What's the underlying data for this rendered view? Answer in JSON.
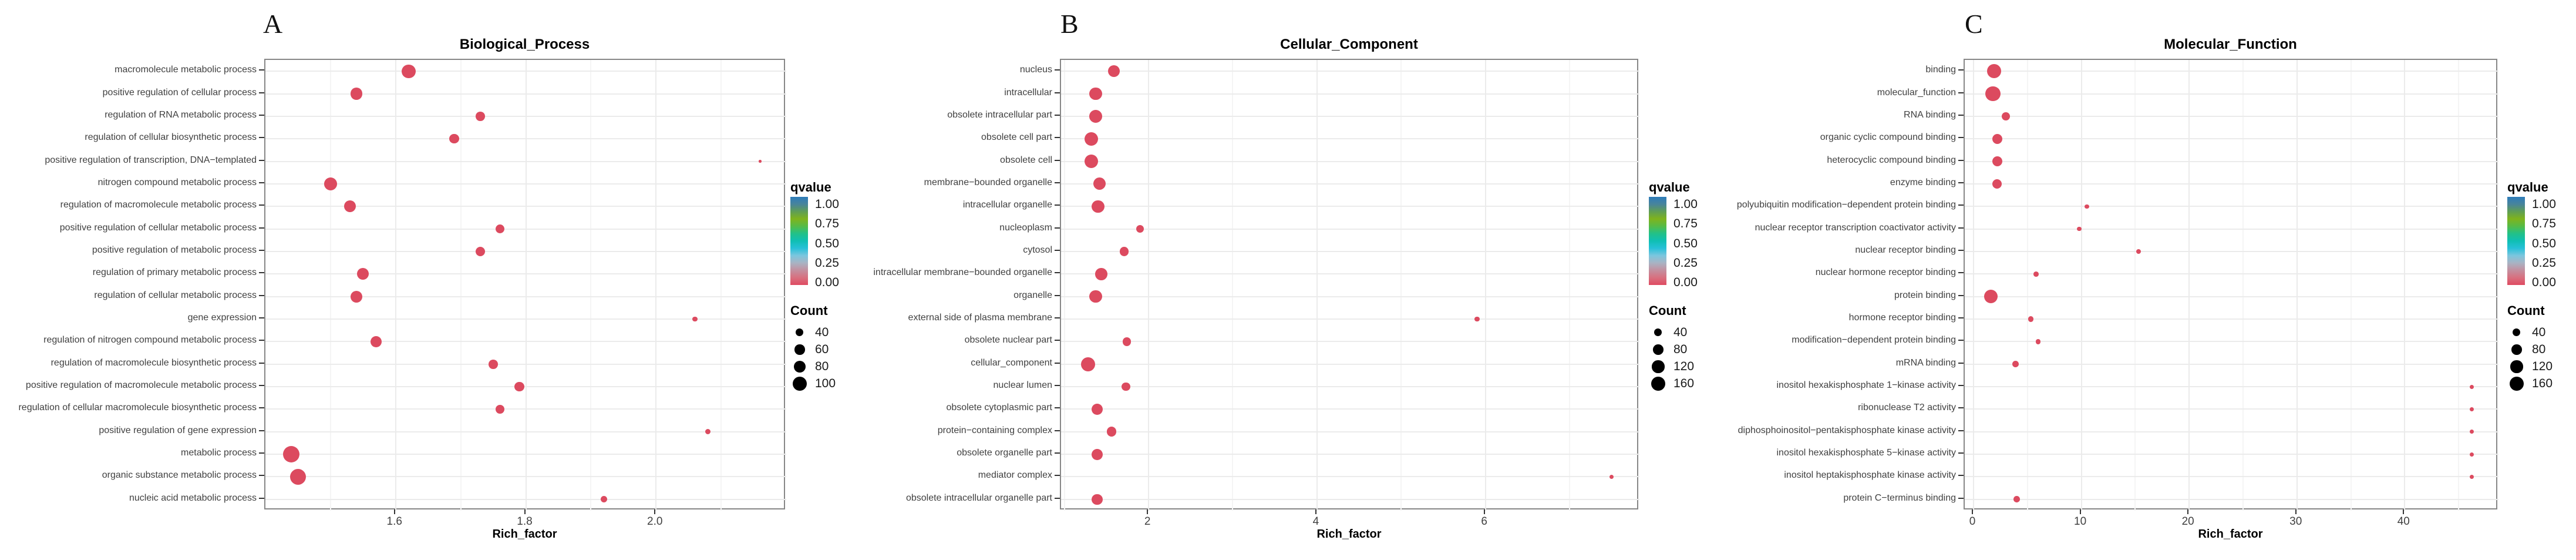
{
  "figure": {
    "description": "GO enrichment dot plots, three panels",
    "background": "#ffffff"
  },
  "colors": {
    "dot": "#DC4A5F",
    "panel_border": "#878787",
    "grid_major": "#EBEBEB",
    "grid_minor": "#F5F5F5",
    "axis_text": "#404040",
    "count_legend_dot": "#000000",
    "colorbar_top_to_bottom": [
      "#2E7CBA",
      "#48849B",
      "#5F9E55",
      "#7FB31D",
      "#55BB47",
      "#22C188",
      "#0FBFB4",
      "#27C0D8",
      "#7CC6DE",
      "#A9B3C3",
      "#C38F9F",
      "#D8707F",
      "#DF4A61"
    ]
  },
  "chart_data": [
    {
      "type": "scatter",
      "panel_letter": "A",
      "title": "Biological_Process",
      "xlabel": "Rich_factor",
      "xlim": [
        1.4,
        2.2
      ],
      "x_ticks": [
        1.6,
        1.8,
        2.0
      ],
      "x_tick_labels": [
        "1.6",
        "1.8",
        "2.0"
      ],
      "x_minor_ticks": [
        1.5,
        1.7,
        1.9,
        2.1
      ],
      "grid": true,
      "legend_position": "right",
      "legend": {
        "qvalue_title": "qvalue",
        "qvalue_tick_labels": [
          "1.00",
          "0.75",
          "0.50",
          "0.25",
          "0.00"
        ],
        "count_title": "Count",
        "count_breaks": [
          40,
          60,
          80,
          100
        ]
      },
      "points": [
        {
          "term": "macromolecule metabolic process",
          "rich_factor": 1.62,
          "count": 95,
          "qvalue": 0
        },
        {
          "term": "positive regulation of cellular process",
          "rich_factor": 1.54,
          "count": 78,
          "qvalue": 0
        },
        {
          "term": "regulation of RNA metabolic process",
          "rich_factor": 1.73,
          "count": 52,
          "qvalue": 0
        },
        {
          "term": "regulation of cellular biosynthetic process",
          "rich_factor": 1.69,
          "count": 55,
          "qvalue": 0
        },
        {
          "term": "positive regulation of transcription, DNA−templated",
          "rich_factor": 2.16,
          "count": 12,
          "qvalue": 0
        },
        {
          "term": "nitrogen compound metabolic process",
          "rich_factor": 1.5,
          "count": 86,
          "qvalue": 0
        },
        {
          "term": "regulation of macromolecule metabolic process",
          "rich_factor": 1.53,
          "count": 76,
          "qvalue": 0
        },
        {
          "term": "positive regulation of cellular metabolic process",
          "rich_factor": 1.76,
          "count": 50,
          "qvalue": 0
        },
        {
          "term": "positive regulation of metabolic process",
          "rich_factor": 1.73,
          "count": 54,
          "qvalue": 0
        },
        {
          "term": "regulation of primary metabolic process",
          "rich_factor": 1.55,
          "count": 76,
          "qvalue": 0
        },
        {
          "term": "regulation of cellular metabolic process",
          "rich_factor": 1.54,
          "count": 76,
          "qvalue": 0
        },
        {
          "term": "gene expression",
          "rich_factor": 2.06,
          "count": 24,
          "qvalue": 0
        },
        {
          "term": "regulation of nitrogen compound metabolic process",
          "rich_factor": 1.57,
          "count": 72,
          "qvalue": 0
        },
        {
          "term": "regulation of macromolecule biosynthetic process",
          "rich_factor": 1.75,
          "count": 52,
          "qvalue": 0
        },
        {
          "term": "positive regulation of macromolecule metabolic process",
          "rich_factor": 1.79,
          "count": 56,
          "qvalue": 0
        },
        {
          "term": "regulation of cellular macromolecule biosynthetic process",
          "rich_factor": 1.76,
          "count": 48,
          "qvalue": 0
        },
        {
          "term": "positive regulation of gene expression",
          "rich_factor": 2.08,
          "count": 25,
          "qvalue": 0
        },
        {
          "term": "metabolic process",
          "rich_factor": 1.44,
          "count": 130,
          "qvalue": 0
        },
        {
          "term": "organic substance metabolic process",
          "rich_factor": 1.45,
          "count": 122,
          "qvalue": 0
        },
        {
          "term": "nucleic acid metabolic process",
          "rich_factor": 1.92,
          "count": 32,
          "qvalue": 0
        }
      ]
    },
    {
      "type": "scatter",
      "panel_letter": "B",
      "title": "Cellular_Component",
      "xlabel": "Rich_factor",
      "xlim": [
        0.96,
        7.83
      ],
      "x_ticks": [
        2,
        4,
        6
      ],
      "x_tick_labels": [
        "2",
        "4",
        "6"
      ],
      "x_minor_ticks": [
        1,
        3,
        5,
        7
      ],
      "grid": true,
      "legend_position": "right",
      "legend": {
        "qvalue_title": "qvalue",
        "qvalue_tick_labels": [
          "1.00",
          "0.75",
          "0.50",
          "0.25",
          "0.00"
        ],
        "count_title": "Count",
        "count_breaks": [
          40,
          80,
          120,
          160
        ]
      },
      "points": [
        {
          "term": "nucleus",
          "rich_factor": 1.59,
          "count": 110,
          "qvalue": 0
        },
        {
          "term": "intracellular",
          "rich_factor": 1.37,
          "count": 130,
          "qvalue": 0
        },
        {
          "term": "obsolete intracellular part",
          "rich_factor": 1.37,
          "count": 130,
          "qvalue": 0
        },
        {
          "term": "obsolete cell part",
          "rich_factor": 1.32,
          "count": 150,
          "qvalue": 0
        },
        {
          "term": "obsolete cell",
          "rich_factor": 1.32,
          "count": 150,
          "qvalue": 0
        },
        {
          "term": "membrane−bounded organelle",
          "rich_factor": 1.42,
          "count": 120,
          "qvalue": 0
        },
        {
          "term": "intracellular organelle",
          "rich_factor": 1.4,
          "count": 125,
          "qvalue": 0
        },
        {
          "term": "nucleoplasm",
          "rich_factor": 1.9,
          "count": 40,
          "qvalue": 0
        },
        {
          "term": "cytosol",
          "rich_factor": 1.71,
          "count": 60,
          "qvalue": 0
        },
        {
          "term": "intracellular membrane−bounded organelle",
          "rich_factor": 1.44,
          "count": 115,
          "qvalue": 0
        },
        {
          "term": "organelle",
          "rich_factor": 1.37,
          "count": 125,
          "qvalue": 0
        },
        {
          "term": "external side of plasma membrane",
          "rich_factor": 5.9,
          "count": 15,
          "qvalue": 0
        },
        {
          "term": "obsolete nuclear part",
          "rich_factor": 1.74,
          "count": 50,
          "qvalue": 0
        },
        {
          "term": "cellular_component",
          "rich_factor": 1.28,
          "count": 165,
          "qvalue": 0
        },
        {
          "term": "nuclear lumen",
          "rich_factor": 1.73,
          "count": 50,
          "qvalue": 0
        },
        {
          "term": "obsolete cytoplasmic part",
          "rich_factor": 1.39,
          "count": 95,
          "qvalue": 0
        },
        {
          "term": "protein−containing complex",
          "rich_factor": 1.56,
          "count": 70,
          "qvalue": 0
        },
        {
          "term": "obsolete organelle part",
          "rich_factor": 1.39,
          "count": 95,
          "qvalue": 0
        },
        {
          "term": "mediator complex",
          "rich_factor": 7.5,
          "count": 10,
          "qvalue": 0
        },
        {
          "term": "obsolete intracellular organelle part",
          "rich_factor": 1.39,
          "count": 90,
          "qvalue": 0
        }
      ]
    },
    {
      "type": "scatter",
      "panel_letter": "C",
      "title": "Molecular_Function",
      "xlabel": "Rich_factor",
      "xlim": [
        -0.82,
        48.7
      ],
      "x_ticks": [
        0,
        10,
        20,
        30,
        40
      ],
      "x_tick_labels": [
        "0",
        "10",
        "20",
        "30",
        "40"
      ],
      "x_minor_ticks": [
        5,
        15,
        25,
        35,
        45
      ],
      "grid": true,
      "legend_position": "right",
      "legend": {
        "qvalue_title": "qvalue",
        "qvalue_tick_labels": [
          "1.00",
          "0.75",
          "0.50",
          "0.25",
          "0.00"
        ],
        "count_title": "Count",
        "count_breaks": [
          40,
          80,
          120,
          160
        ]
      },
      "points": [
        {
          "term": "binding",
          "rich_factor": 1.9,
          "count": 165,
          "qvalue": 0
        },
        {
          "term": "molecular_function",
          "rich_factor": 1.8,
          "count": 180,
          "qvalue": 0
        },
        {
          "term": "RNA binding",
          "rich_factor": 3.0,
          "count": 45,
          "qvalue": 0
        },
        {
          "term": "organic cyclic compound binding",
          "rich_factor": 2.2,
          "count": 75,
          "qvalue": 0
        },
        {
          "term": "heterocyclic compound binding",
          "rich_factor": 2.2,
          "count": 75,
          "qvalue": 0
        },
        {
          "term": "enzyme binding",
          "rich_factor": 2.2,
          "count": 65,
          "qvalue": 0
        },
        {
          "term": "polyubiquitin modification−dependent protein binding",
          "rich_factor": 10.5,
          "count": 10,
          "qvalue": 0
        },
        {
          "term": "nuclear receptor transcription coactivator activity",
          "rich_factor": 9.8,
          "count": 10,
          "qvalue": 0
        },
        {
          "term": "nuclear receptor binding",
          "rich_factor": 15.3,
          "count": 12,
          "qvalue": 0
        },
        {
          "term": "nuclear hormone receptor binding",
          "rich_factor": 5.8,
          "count": 15,
          "qvalue": 0
        },
        {
          "term": "protein binding",
          "rich_factor": 1.6,
          "count": 150,
          "qvalue": 0
        },
        {
          "term": "hormone receptor binding",
          "rich_factor": 5.3,
          "count": 18,
          "qvalue": 0
        },
        {
          "term": "modification−dependent protein binding",
          "rich_factor": 6.0,
          "count": 14,
          "qvalue": 0
        },
        {
          "term": "mRNA binding",
          "rich_factor": 3.9,
          "count": 25,
          "qvalue": 0
        },
        {
          "term": "inositol hexakisphosphate 1−kinase activity",
          "rich_factor": 46.2,
          "count": 8,
          "qvalue": 0
        },
        {
          "term": "ribonuclease T2 activity",
          "rich_factor": 46.2,
          "count": 8,
          "qvalue": 0
        },
        {
          "term": "diphosphoinositol−pentakisphosphate kinase activity",
          "rich_factor": 46.2,
          "count": 8,
          "qvalue": 0
        },
        {
          "term": "inositol hexakisphosphate 5−kinase activity",
          "rich_factor": 46.2,
          "count": 8,
          "qvalue": 0
        },
        {
          "term": "inositol heptakisphosphate kinase activity",
          "rich_factor": 46.2,
          "count": 8,
          "qvalue": 0
        },
        {
          "term": "protein C−terminus binding",
          "rich_factor": 4.0,
          "count": 25,
          "qvalue": 0
        }
      ]
    }
  ]
}
